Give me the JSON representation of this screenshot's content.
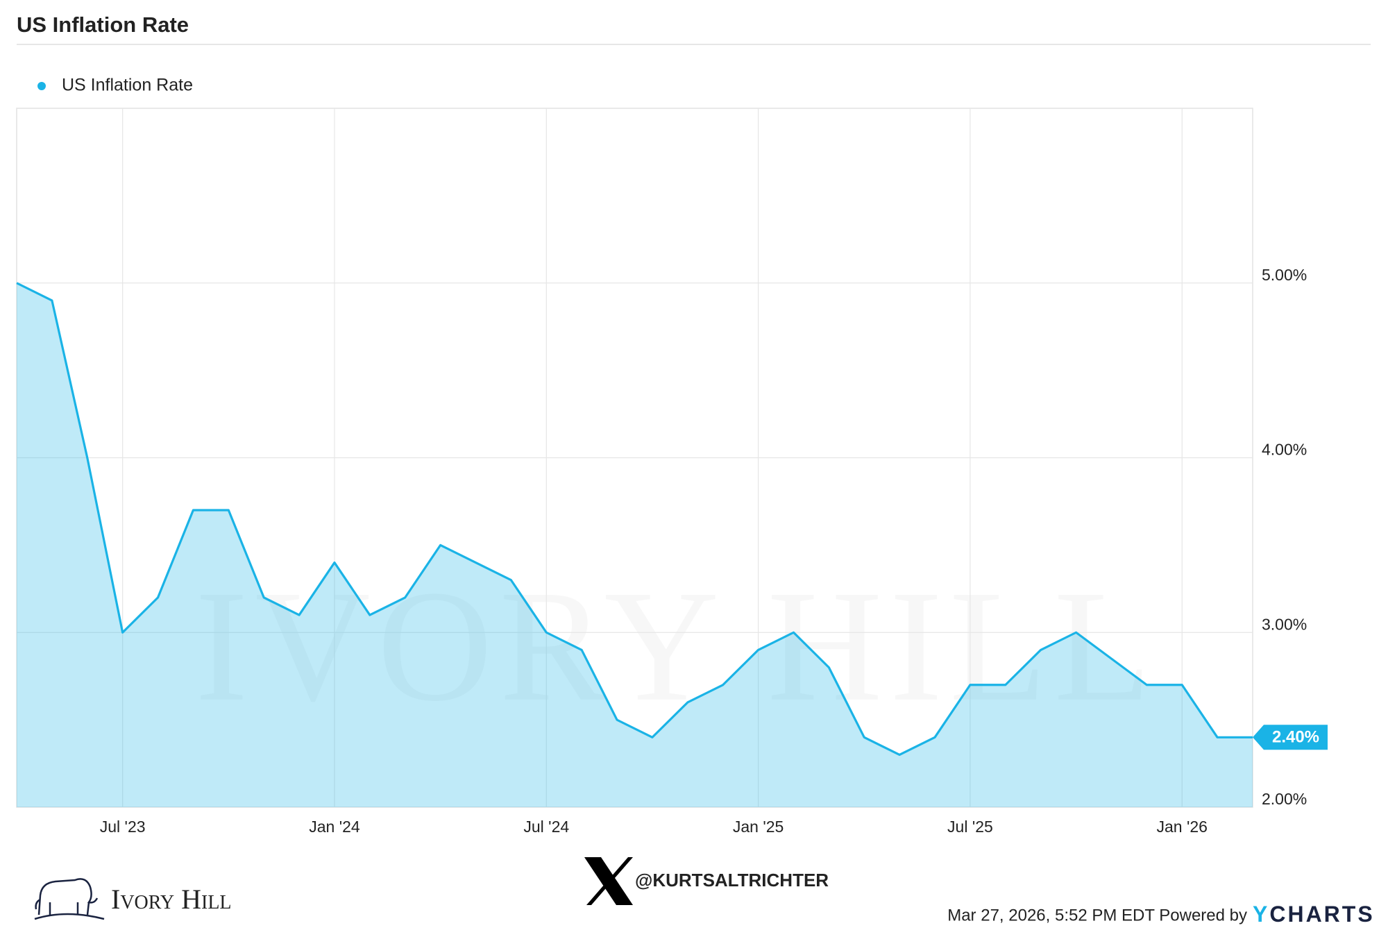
{
  "chart_data": {
    "type": "line",
    "title": "US Inflation Rate",
    "x": [
      "2023-03",
      "2023-04",
      "2023-05",
      "2023-06",
      "2023-07",
      "2023-08",
      "2023-09",
      "2023-10",
      "2023-11",
      "2023-12",
      "2024-01",
      "2024-02",
      "2024-03",
      "2024-04",
      "2024-05",
      "2024-06",
      "2024-07",
      "2024-08",
      "2024-09",
      "2024-10",
      "2024-11",
      "2024-12",
      "2025-01",
      "2025-02",
      "2025-03",
      "2025-04",
      "2025-05",
      "2025-06",
      "2025-07",
      "2025-08",
      "2025-09",
      "2025-10",
      "2025-11",
      "2025-12",
      "2026-01",
      "2026-02"
    ],
    "series": [
      {
        "name": "US Inflation Rate",
        "color": "#1ab3e6",
        "values": [
          5.0,
          4.9,
          4.0,
          3.0,
          3.2,
          3.7,
          3.7,
          3.2,
          3.1,
          3.4,
          3.1,
          3.2,
          3.5,
          3.4,
          3.3,
          3.0,
          2.9,
          2.5,
          2.4,
          2.6,
          2.7,
          2.9,
          3.0,
          2.8,
          2.4,
          2.3,
          2.4,
          2.7,
          2.7,
          2.9,
          3.0,
          2.85,
          2.7,
          2.7,
          2.4,
          2.4
        ],
        "value_labels": [
          null,
          null,
          null,
          null,
          null,
          null,
          null,
          null,
          null,
          null,
          null,
          null,
          null,
          null,
          null,
          null,
          null,
          null,
          null,
          null,
          null,
          null,
          null,
          null,
          null,
          null,
          null,
          null,
          null,
          null,
          null,
          null,
          null,
          null,
          null,
          "2.40%"
        ]
      }
    ],
    "ylim": [
      2,
      6
    ],
    "yticks": [
      {
        "value": 2,
        "label": "2.00%"
      },
      {
        "value": 3,
        "label": "3.00%"
      },
      {
        "value": 4,
        "label": "4.00%"
      },
      {
        "value": 5,
        "label": "5.00%"
      }
    ],
    "xticks": [
      {
        "value": "2023-07",
        "label": "Jul '23"
      },
      {
        "value": "2024-01",
        "label": "Jan '24"
      },
      {
        "value": "2024-07",
        "label": "Jul '24"
      },
      {
        "value": "2025-01",
        "label": "Jan '25"
      },
      {
        "value": "2025-07",
        "label": "Jul '25"
      },
      {
        "value": "2026-01",
        "label": "Jan '26"
      }
    ],
    "grid": true
  },
  "footer": {
    "brand": "Ivory Hill",
    "handle": "@KURTSALTRICHTER",
    "timestamp": "Mar 27, 2026, 5:52 PM EDT Powered by",
    "provider_y": "Y",
    "provider_rest": "CHARTS"
  }
}
